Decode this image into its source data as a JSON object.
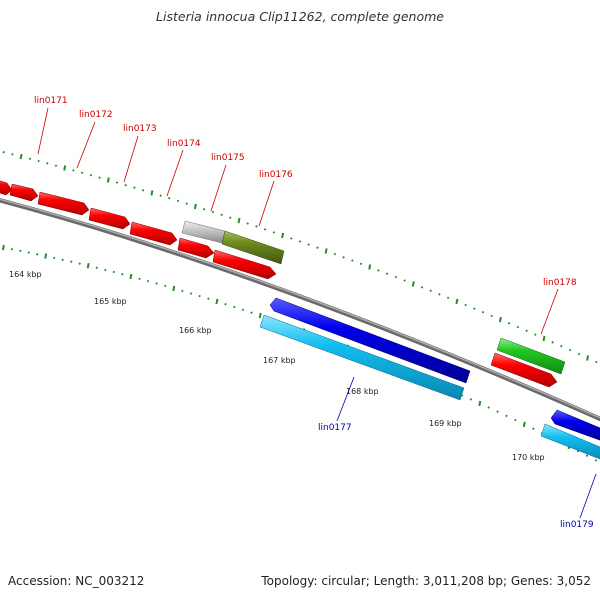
{
  "header": {
    "title": "Listeria innocua Clip11262, complete genome"
  },
  "footer": {
    "accession": "Accession: NC_003212",
    "topology": "Topology: circular; Length: 3,011,208 bp; Genes: 3,052"
  },
  "colors": {
    "forward_gene": "#ff0000",
    "reverse_gene": "#0000ff",
    "forward_label": "#cc0000",
    "reverse_label": "#0000aa",
    "forward_cds_light": "#21c621",
    "forward_cds_olive": "#6e8b1e",
    "reverse_cds_light": "#11bff0",
    "pseudo_gray": "#c8c8c8",
    "backbone": "#808080",
    "tick": "#2a8a2a"
  },
  "ruler": {
    "labels": [
      "164 kbp",
      "165 kbp",
      "166 kbp",
      "167 kbp",
      "168 kbp",
      "169 kbp",
      "170 kbp"
    ]
  },
  "genes": {
    "forward": [
      "lin0171",
      "lin0172",
      "lin0173",
      "lin0174",
      "lin0175",
      "lin0176",
      "lin0178"
    ],
    "reverse": [
      "lin0177",
      "lin0179"
    ]
  }
}
